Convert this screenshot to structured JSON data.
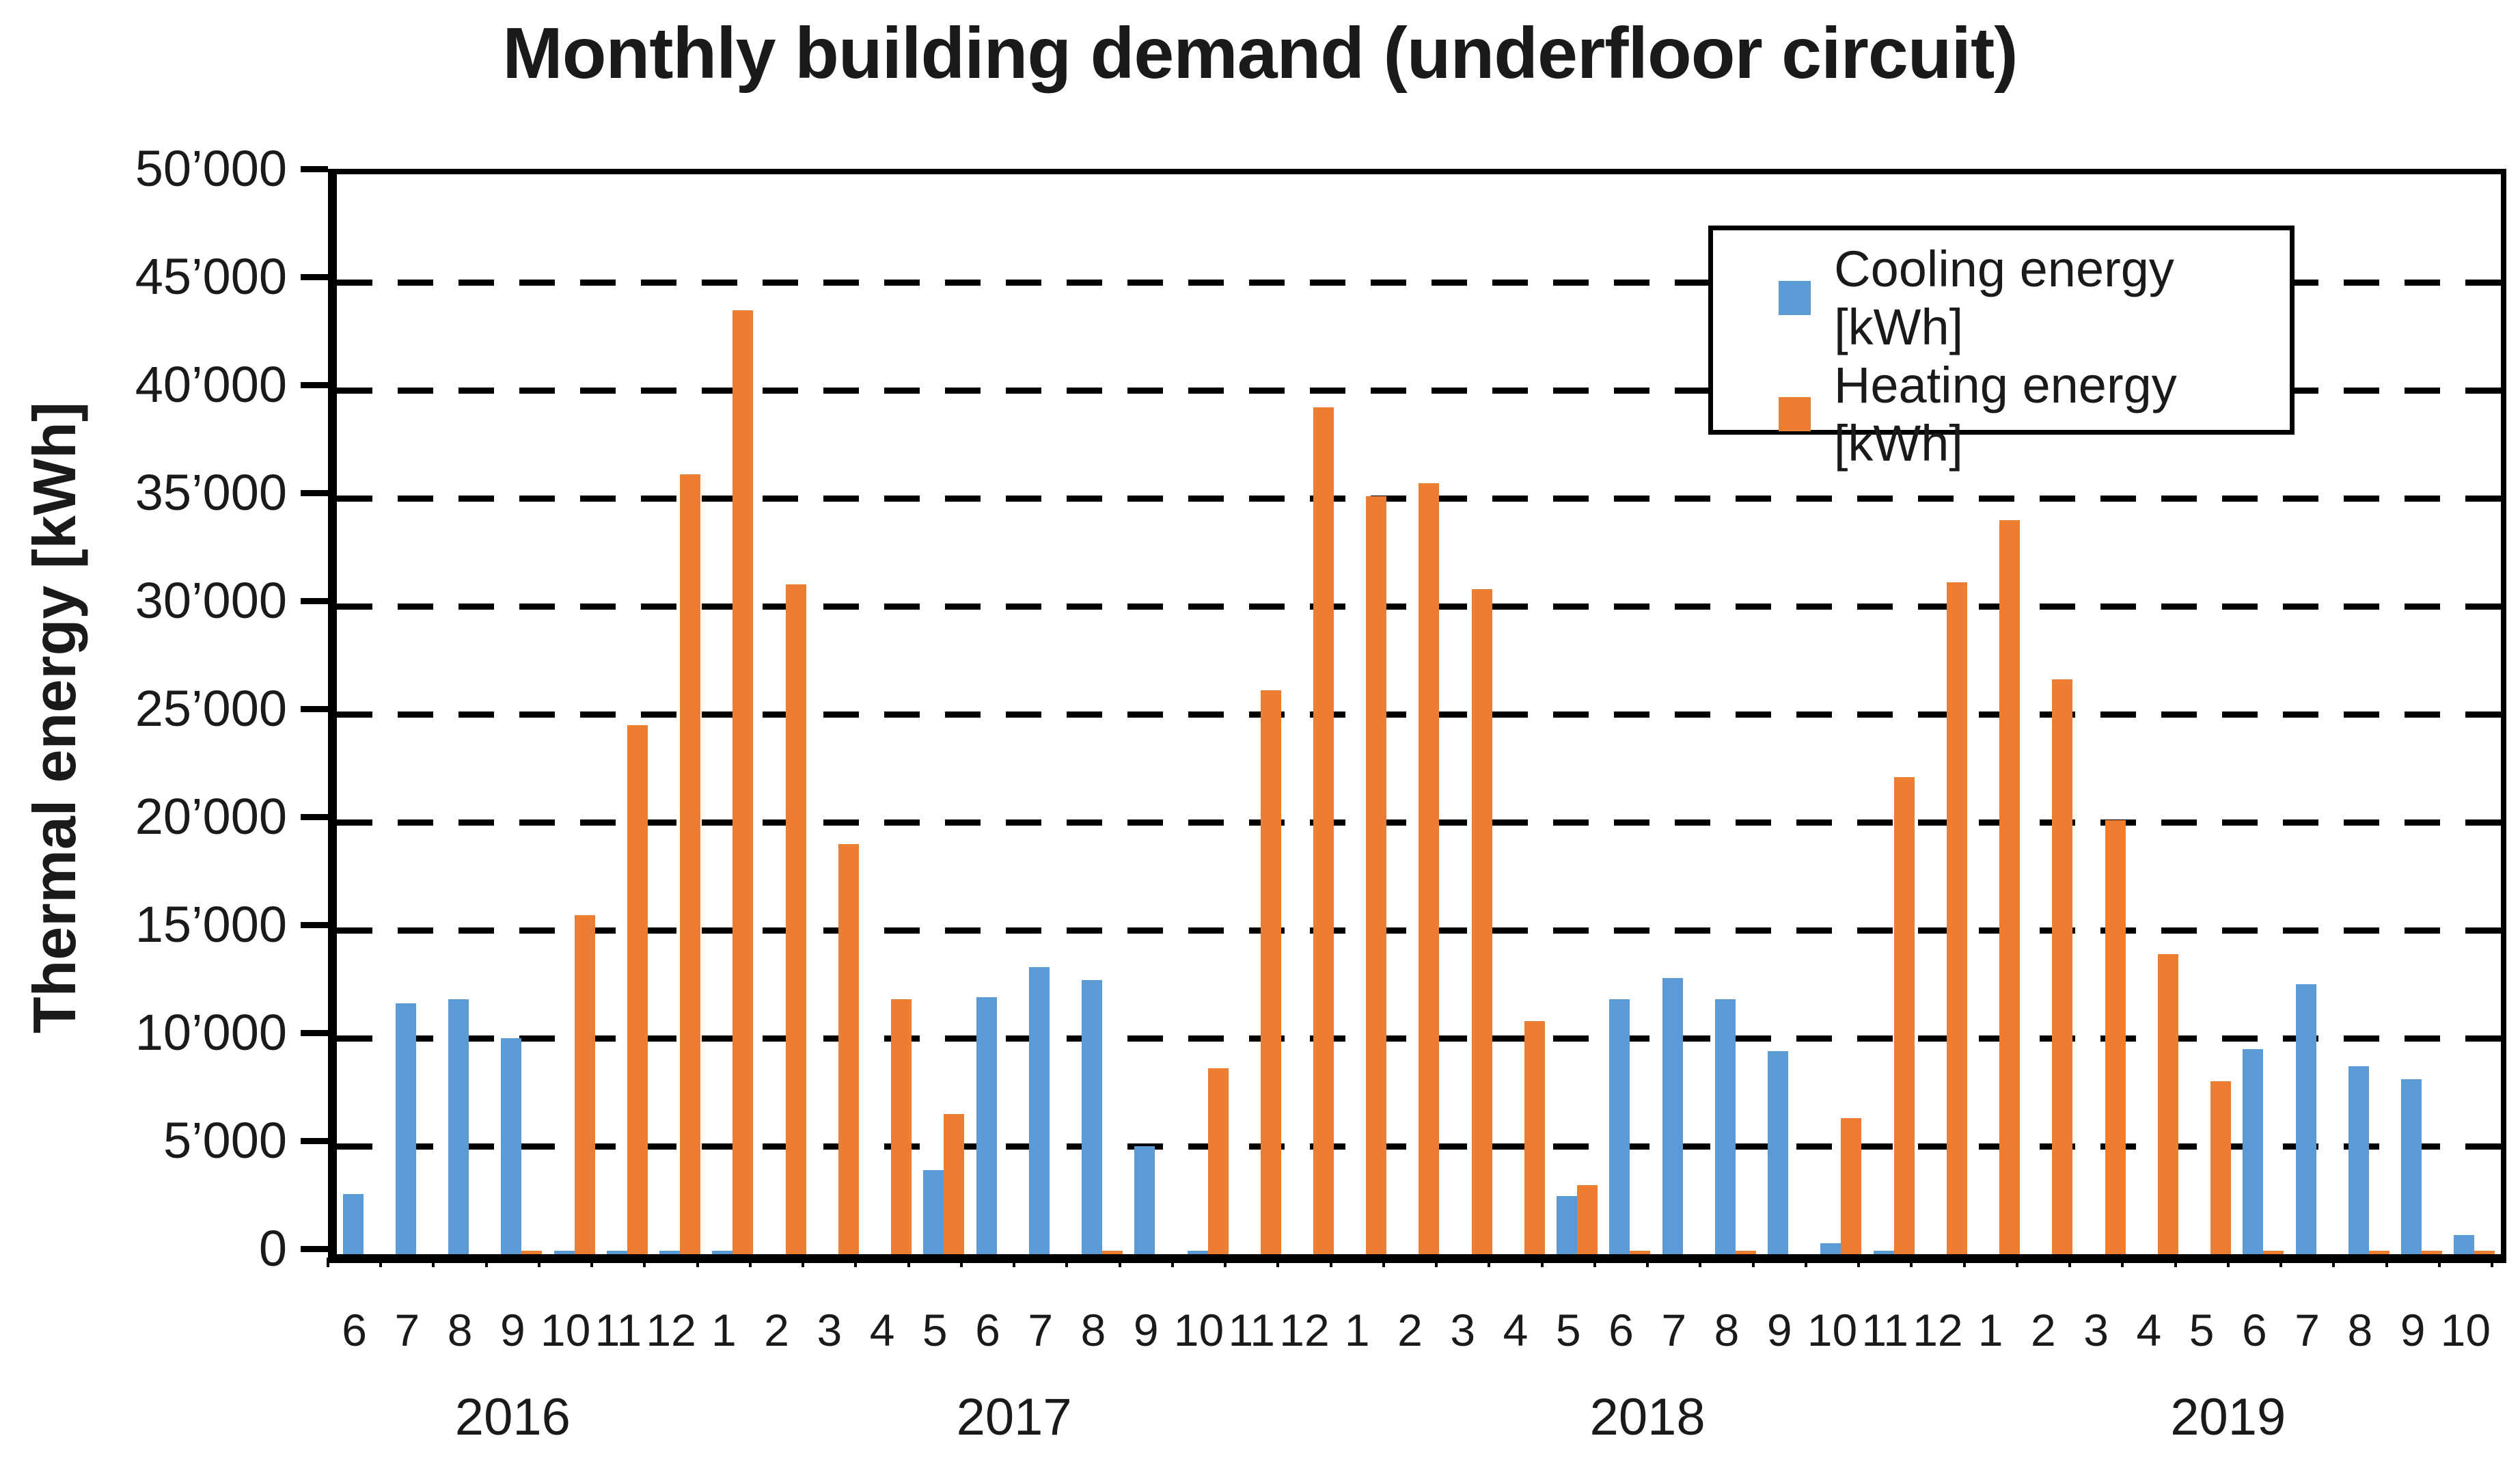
{
  "page": {
    "background": "#FFFFFF"
  },
  "chart_data": {
    "type": "bar",
    "title": "Monthly building demand (underfloor circuit)",
    "ylabel": "Thermal energy [kWh]",
    "xlabel": "",
    "ylim": [
      0,
      50000
    ],
    "ytick_step": 5000,
    "ytick_labels": [
      "0",
      "5’000",
      "10’000",
      "15’000",
      "20’000",
      "25’000",
      "30’000",
      "35’000",
      "40’000",
      "45’000",
      "50’000"
    ],
    "grid": "horizontal-dashed",
    "legend_position": "inside-top-right",
    "colors": {
      "cooling": "#5B9BD5",
      "heating": "#ED7D31",
      "axis": "#000000"
    },
    "month_labels": [
      "6",
      "7",
      "8",
      "9",
      "10",
      "11",
      "12",
      "1",
      "2",
      "3",
      "4",
      "5",
      "6",
      "7",
      "8",
      "9",
      "10",
      "11",
      "12",
      "1",
      "2",
      "3",
      "4",
      "5",
      "6",
      "7",
      "8",
      "9",
      "10",
      "11",
      "12",
      "1",
      "2",
      "3",
      "4",
      "5",
      "6",
      "7",
      "8",
      "9",
      "10"
    ],
    "year_groups": [
      {
        "label": "2016",
        "months": 7
      },
      {
        "label": "2017",
        "months": 12
      },
      {
        "label": "2018",
        "months": 12
      },
      {
        "label": "2019",
        "months": 10
      }
    ],
    "series": [
      {
        "name": "Cooling energy [kWh]",
        "color": "#5B9BD5",
        "values": [
          2800,
          11600,
          11800,
          10000,
          150,
          150,
          150,
          150,
          0,
          0,
          0,
          3900,
          11900,
          13300,
          12700,
          5000,
          150,
          0,
          0,
          0,
          0,
          0,
          0,
          2700,
          11800,
          12800,
          11800,
          9400,
          500,
          150,
          0,
          0,
          0,
          0,
          0,
          0,
          9500,
          12500,
          8700,
          8100,
          900
        ]
      },
      {
        "name": "Heating energy [kWh]",
        "color": "#ED7D31",
        "values": [
          0,
          0,
          0,
          150,
          15700,
          24500,
          36100,
          43700,
          31000,
          19000,
          11800,
          6500,
          0,
          0,
          150,
          0,
          8600,
          26100,
          39200,
          35100,
          35700,
          30800,
          10800,
          3200,
          150,
          0,
          150,
          0,
          6300,
          22100,
          31100,
          34000,
          26600,
          20100,
          13900,
          8000,
          150,
          0,
          150,
          150,
          150
        ]
      }
    ]
  }
}
